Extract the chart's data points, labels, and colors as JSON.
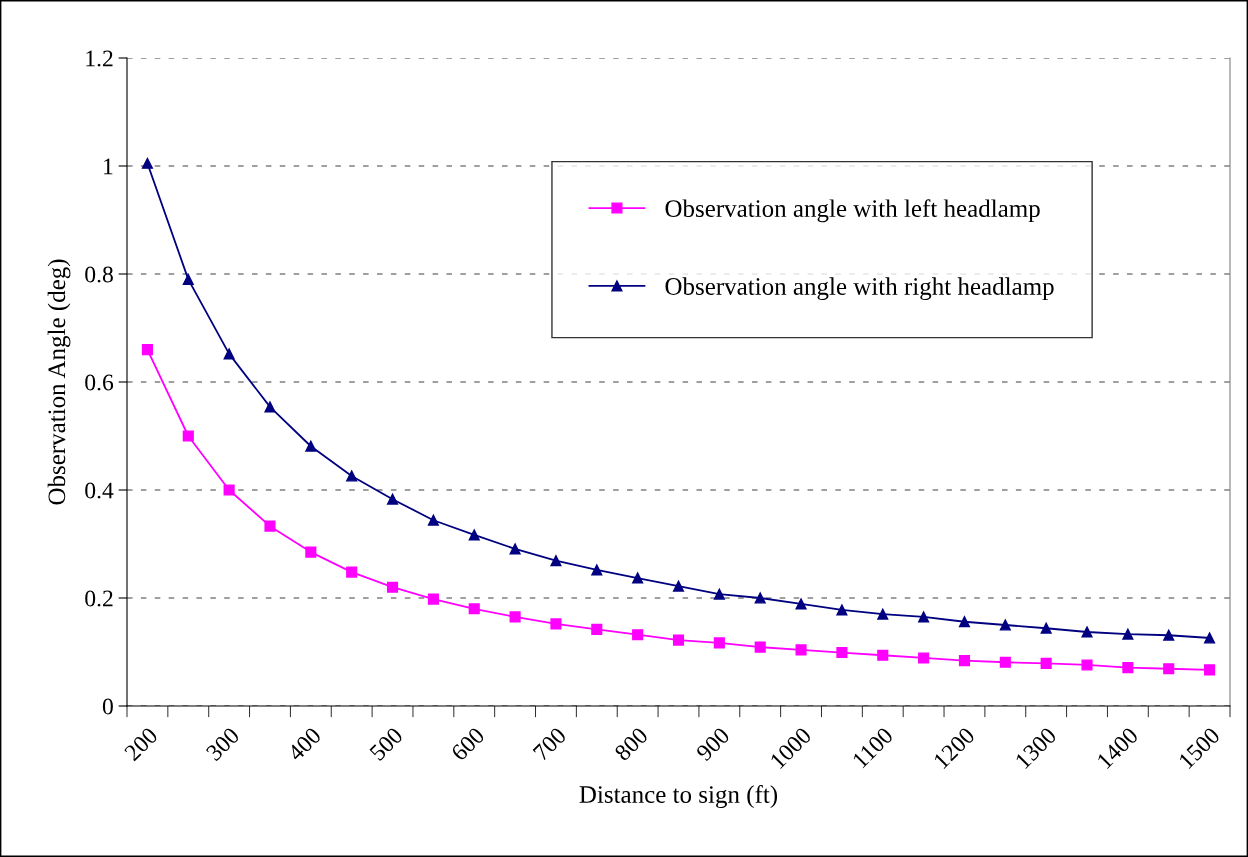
{
  "chart_data": {
    "type": "line",
    "xlabel": "Distance to sign (ft)",
    "ylabel": "Observation Angle (deg)",
    "categories": [
      "200",
      null,
      "300",
      null,
      "400",
      null,
      "500",
      null,
      "600",
      null,
      "700",
      null,
      "800",
      null,
      "900",
      null,
      "1000",
      null,
      "1100",
      null,
      "1200",
      null,
      "1300",
      null,
      "1400",
      null,
      "1500"
    ],
    "series": [
      {
        "name": "Observation angle with left headlamp",
        "color": "#ff00ff",
        "marker": "square",
        "values": [
          0.66,
          0.5,
          0.4,
          0.333,
          0.285,
          0.248,
          0.22,
          0.198,
          0.18,
          0.165,
          0.152,
          0.142,
          0.132,
          0.122,
          0.117,
          0.109,
          0.104,
          0.099,
          0.094,
          0.089,
          0.084,
          0.081,
          0.079,
          0.076,
          0.071,
          0.069,
          0.067
        ]
      },
      {
        "name": "Observation angle with right headlamp",
        "color": "#000080",
        "marker": "triangle",
        "values": [
          1.005,
          0.79,
          0.652,
          0.554,
          0.481,
          0.426,
          0.383,
          0.344,
          0.317,
          0.291,
          0.269,
          0.252,
          0.237,
          0.222,
          0.207,
          0.2,
          0.189,
          0.178,
          0.17,
          0.165,
          0.156,
          0.15,
          0.144,
          0.137,
          0.133,
          0.131,
          0.126
        ]
      }
    ],
    "ylim": [
      0,
      1.2
    ],
    "yticks": [
      0,
      0.2,
      0.4,
      0.6,
      0.8,
      1,
      1.2
    ],
    "grid": "y",
    "legend": "top right",
    "line_style": "solid"
  }
}
